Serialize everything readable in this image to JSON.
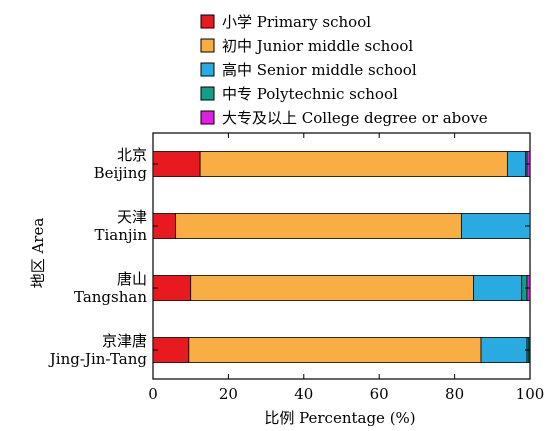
{
  "chart_data": {
    "type": "bar",
    "orientation": "horizontal",
    "stacked": true,
    "categories": [
      {
        "cn": "北京",
        "en": "Beijing"
      },
      {
        "cn": "天津",
        "en": "Tianjin"
      },
      {
        "cn": "唐山",
        "en": "Tangshan"
      },
      {
        "cn": "京津唐",
        "en": "Jing-Jin-Tang"
      }
    ],
    "series": [
      {
        "name": "小学 Primary school",
        "color": "#e8191f",
        "values": [
          12.5,
          6.0,
          10.0,
          9.5
        ]
      },
      {
        "name": "初中 Junior middle school",
        "color": "#f8ae42",
        "values": [
          81.5,
          75.8,
          75.0,
          77.5
        ]
      },
      {
        "name": "高中 Senior middle school",
        "color": "#29abe2",
        "values": [
          4.8,
          18.2,
          12.8,
          12.2
        ]
      },
      {
        "name": "中专 Polytechnic school",
        "color": "#11a085",
        "values": [
          0.4,
          0.0,
          1.4,
          0.5
        ]
      },
      {
        "name": "大专及以上 College degree or above",
        "color": "#e020e0",
        "values": [
          0.8,
          0.0,
          0.8,
          0.3
        ]
      }
    ],
    "xlabel": "比例 Percentage (%)",
    "ylabel": "地区 Area",
    "xlim": [
      0,
      100
    ],
    "xticks": [
      "0",
      "20",
      "40",
      "60",
      "80",
      "100"
    ],
    "legend_position": "top",
    "grid": false
  }
}
